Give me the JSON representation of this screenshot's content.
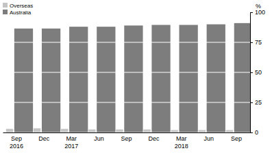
{
  "chart_data": {
    "type": "bar",
    "y_label": "%",
    "categories": [
      "Sep 2016",
      "Dec",
      "Mar 2017",
      "Jun",
      "Sep",
      "Dec",
      "Mar 2018",
      "Jun",
      "Sep"
    ],
    "series": [
      {
        "name": "Overseas",
        "color": "#c4c4c4",
        "values": [
          3,
          3.5,
          3,
          2.5,
          2.5,
          2.5,
          2,
          2,
          2
        ]
      },
      {
        "name": "Australia",
        "color": "#7d7d7d",
        "values": [
          86.5,
          86.5,
          88,
          88,
          89,
          89.5,
          89.5,
          90,
          91
        ]
      }
    ],
    "ylim": [
      0,
      100
    ],
    "yticks": [
      0,
      25,
      50,
      75,
      100
    ],
    "grid": true,
    "legend": "upper left"
  }
}
